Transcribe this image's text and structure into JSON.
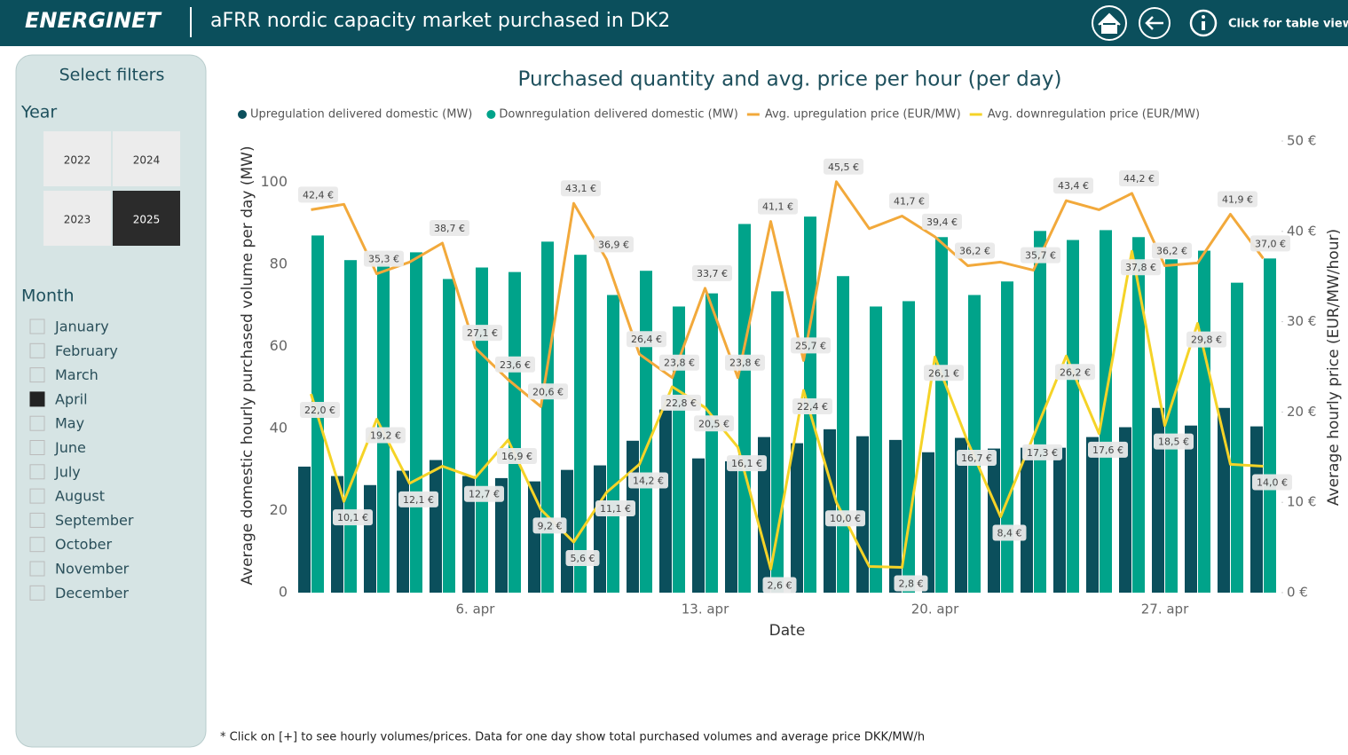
{
  "header": {
    "logo": "ENERGINET",
    "title": "aFRR nordic capacity market purchased in DK2",
    "table_view": "Click for table view"
  },
  "filters": {
    "title": "Select filters",
    "year_label": "Year",
    "years": [
      {
        "label": "2022",
        "selected": false
      },
      {
        "label": "2024",
        "selected": false
      },
      {
        "label": "2023",
        "selected": false
      },
      {
        "label": "2025",
        "selected": true
      }
    ],
    "month_label": "Month",
    "months": [
      {
        "label": "January",
        "checked": false
      },
      {
        "label": "February",
        "checked": false
      },
      {
        "label": "March",
        "checked": false
      },
      {
        "label": "April",
        "checked": true
      },
      {
        "label": "May",
        "checked": false
      },
      {
        "label": "June",
        "checked": false
      },
      {
        "label": "July",
        "checked": false
      },
      {
        "label": "August",
        "checked": false
      },
      {
        "label": "September",
        "checked": false
      },
      {
        "label": "October",
        "checked": false
      },
      {
        "label": "November",
        "checked": false
      },
      {
        "label": "December",
        "checked": false
      }
    ]
  },
  "chart_data": {
    "type": "combo",
    "title": "Purchased quantity and avg. price per hour (per day)",
    "x_label": "Date",
    "y_label": "Average domestic hourly purchased volume per day (MW)",
    "y2_label": "Average hourly price (EUR/MW/hour)",
    "categories": [
      null,
      null,
      null,
      null,
      null,
      "6. apr",
      null,
      null,
      null,
      null,
      null,
      null,
      "13. apr",
      null,
      null,
      null,
      null,
      null,
      null,
      "20. apr",
      null,
      null,
      null,
      null,
      null,
      null,
      "27. apr",
      null,
      null,
      null
    ],
    "ylim": [
      0,
      110
    ],
    "yticks": [
      0,
      20,
      40,
      60,
      80,
      100
    ],
    "y2lim": [
      0,
      50
    ],
    "y2ticks": [
      {
        "value": 0,
        "label": "0 €"
      },
      {
        "value": 10,
        "label": "10 €"
      },
      {
        "value": 20,
        "label": "20 €"
      },
      {
        "value": 30,
        "label": "30 €"
      },
      {
        "value": 40,
        "label": "40 €"
      },
      {
        "value": 50,
        "label": "50 €"
      }
    ],
    "grid": false,
    "series": [
      {
        "name": "Upregulation delivered domestic (MW)",
        "type": "bar",
        "color": "#0b4f5c",
        "values": [
          30.7,
          28.4,
          26.2,
          29.7,
          32.3,
          28.4,
          27.9,
          27.1,
          29.9,
          31.0,
          37.0,
          44.6,
          32.7,
          32.0,
          37.9,
          36.4,
          39.8,
          38.1,
          37.2,
          34.2,
          37.7,
          35.1,
          35.3,
          35.3,
          37.9,
          40.3,
          45.0,
          40.7,
          45.0,
          40.5
        ]
      },
      {
        "name": "Downregulation delivered domestic (MW)",
        "type": "bar",
        "color": "#00a38a",
        "values": [
          87.0,
          81.0,
          80.1,
          82.9,
          76.4,
          79.2,
          78.1,
          85.5,
          82.3,
          72.5,
          78.4,
          69.7,
          72.9,
          89.8,
          73.4,
          91.6,
          77.1,
          69.7,
          71.0,
          86.6,
          72.5,
          75.8,
          88.1,
          85.9,
          88.3,
          86.6,
          81.2,
          83.3,
          75.5,
          81.4
        ]
      },
      {
        "name": "Avg. upregulation price (EUR/MW)",
        "type": "line",
        "axis": "y2",
        "color": "#f2a93b",
        "values": [
          42.4,
          43.0,
          35.3,
          36.6,
          38.7,
          27.1,
          23.6,
          20.6,
          43.1,
          36.9,
          26.4,
          23.8,
          33.7,
          23.8,
          41.1,
          25.7,
          45.5,
          40.3,
          41.7,
          39.4,
          36.2,
          36.6,
          35.7,
          43.4,
          42.4,
          44.2,
          36.2,
          36.5,
          41.9,
          37.0
        ],
        "value_labels": [
          "42,4 €",
          null,
          "35,3 €",
          null,
          "38,7 €",
          "27,1 €",
          "23,6 €",
          "20,6 €",
          "43,1 €",
          "36,9 €",
          "26,4 €",
          "23,8 €",
          "33,7 €",
          "23,8 €",
          "41,1 €",
          "25,7 €",
          "45,5 €",
          null,
          "41,7 €",
          "39,4 €",
          "36,2 €",
          null,
          "35,7 €",
          "43,4 €",
          null,
          "44,2 €",
          "36,2 €",
          null,
          "41,9 €",
          "37,0 €"
        ]
      },
      {
        "name": "Avg. downregulation price (EUR/MW)",
        "type": "line",
        "axis": "y2",
        "color": "#f5d327",
        "values": [
          22.0,
          10.1,
          19.2,
          12.1,
          14.0,
          12.7,
          16.9,
          9.2,
          5.6,
          11.1,
          14.2,
          22.8,
          20.5,
          16.1,
          2.6,
          22.4,
          10.0,
          2.9,
          2.8,
          26.1,
          16.7,
          8.4,
          17.3,
          26.2,
          17.6,
          37.8,
          18.5,
          29.8,
          14.2,
          14.0
        ],
        "value_labels": [
          "22,0 €",
          "10,1 €",
          "19,2 €",
          "12,1 €",
          null,
          "12,7 €",
          "16,9 €",
          "9,2 €",
          "5,6 €",
          "11,1 €",
          "14,2 €",
          "22,8 €",
          "20,5 €",
          "16,1 €",
          "2,6 €",
          "22,4 €",
          "10,0 €",
          null,
          "2,8 €",
          "26,1 €",
          "16,7 €",
          "8,4 €",
          "17,3 €",
          "26,2 €",
          "17,6 €",
          "37,8 €",
          "18,5 €",
          "29,8 €",
          null,
          "14,0 €"
        ]
      }
    ]
  },
  "footnote": "* Click on [+] to see hourly volumes/prices. Data for one day show total purchased volumes and average price DKK/MW/h"
}
